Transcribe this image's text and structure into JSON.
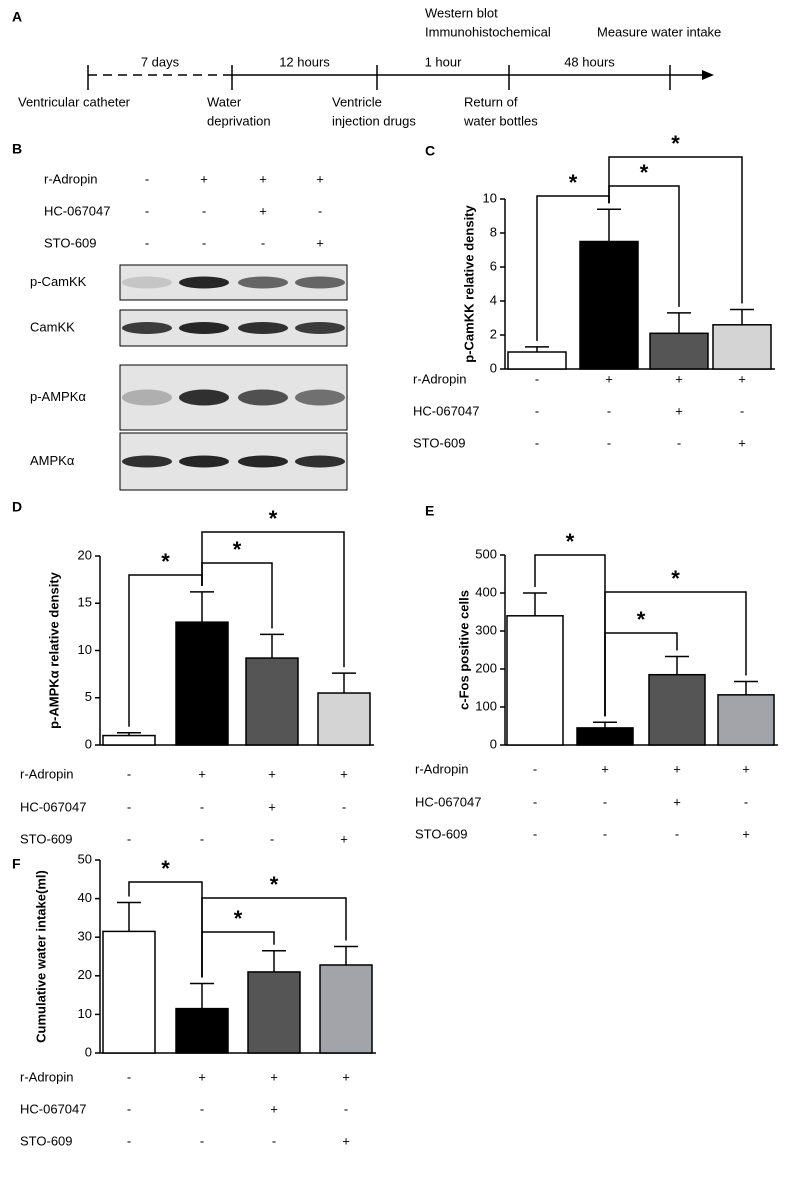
{
  "panel_labels": [
    "A",
    "B",
    "C",
    "D",
    "E",
    "F"
  ],
  "timeline": {
    "intervals": [
      "7 days",
      "12 hours",
      "1 hour",
      "48 hours"
    ],
    "events_below": [
      [
        "Ventricular catheter"
      ],
      [
        "Water",
        "deprivation"
      ],
      [
        "Ventricle",
        "injection drugs"
      ],
      [
        "Return of",
        "water bottles"
      ]
    ],
    "events_above": [
      "Western blot",
      "Immunohistochemical",
      "Measure water intake"
    ]
  },
  "blot": {
    "treatments": [
      {
        "name": "r-Adropin",
        "signs": [
          "-",
          "+",
          "+",
          "+"
        ]
      },
      {
        "name": "HC-067047",
        "signs": [
          "-",
          "-",
          "+",
          "-"
        ]
      },
      {
        "name": "STO-609",
        "signs": [
          "-",
          "-",
          "-",
          "+"
        ]
      }
    ],
    "proteins": [
      "p-CamKK",
      "CamKK",
      "p-AMPKα",
      "AMPKα"
    ]
  },
  "chart_data": [
    {
      "type": "bar",
      "ylabel": "p-CamKK relative density",
      "values": [
        1.0,
        7.5,
        2.1,
        2.6
      ],
      "errors": [
        0.3,
        1.9,
        1.2,
        0.9
      ],
      "colors": [
        "#ffffff",
        "#000000",
        "#555555",
        "#d4d4d4"
      ],
      "ylim": [
        0,
        10
      ],
      "yticks": [
        0,
        2,
        4,
        6,
        8,
        10
      ],
      "treatments": [
        {
          "name": "r-Adropin",
          "signs": [
            "-",
            "+",
            "+",
            "+"
          ]
        },
        {
          "name": "HC-067047",
          "signs": [
            "-",
            "-",
            "+",
            "-"
          ]
        },
        {
          "name": "STO-609",
          "signs": [
            "-",
            "-",
            "-",
            "+"
          ]
        }
      ],
      "significance": [
        {
          "label": "*",
          "between": [
            0,
            1
          ]
        },
        {
          "label": "*",
          "between": [
            1,
            2
          ]
        },
        {
          "label": "*",
          "between": [
            1,
            3
          ]
        }
      ]
    },
    {
      "type": "bar",
      "ylabel": "p-AMPKα relative density",
      "values": [
        1.0,
        13.0,
        9.2,
        5.5
      ],
      "errors": [
        0.3,
        3.2,
        2.5,
        2.1
      ],
      "colors": [
        "#ffffff",
        "#000000",
        "#555555",
        "#d4d4d4"
      ],
      "ylim": [
        0,
        20
      ],
      "yticks": [
        0,
        5,
        10,
        15,
        20
      ],
      "treatments": [
        {
          "name": "r-Adropin",
          "signs": [
            "-",
            "+",
            "+",
            "+"
          ]
        },
        {
          "name": "HC-067047",
          "signs": [
            "-",
            "-",
            "+",
            "-"
          ]
        },
        {
          "name": "STO-609",
          "signs": [
            "-",
            "-",
            "-",
            "+"
          ]
        }
      ],
      "significance": [
        {
          "label": "*",
          "between": [
            0,
            1
          ]
        },
        {
          "label": "*",
          "between": [
            1,
            2
          ]
        },
        {
          "label": "*",
          "between": [
            1,
            3
          ]
        }
      ]
    },
    {
      "type": "bar",
      "ylabel": "c-Fos positive cells",
      "values": [
        340,
        45,
        185,
        132
      ],
      "errors": [
        60,
        15,
        48,
        35
      ],
      "colors": [
        "#ffffff",
        "#000000",
        "#555555",
        "#a3a3aa"
      ],
      "ylim": [
        0,
        500
      ],
      "yticks": [
        0,
        100,
        200,
        300,
        400,
        500
      ],
      "treatments": [
        {
          "name": "r-Adropin",
          "signs": [
            "-",
            "+",
            "+",
            "+"
          ]
        },
        {
          "name": "HC-067047",
          "signs": [
            "-",
            "-",
            "+",
            "-"
          ]
        },
        {
          "name": "STO-609",
          "signs": [
            "-",
            "-",
            "-",
            "+"
          ]
        }
      ],
      "significance": [
        {
          "label": "*",
          "between": [
            0,
            1
          ]
        },
        {
          "label": "*",
          "between": [
            1,
            2
          ]
        },
        {
          "label": "*",
          "between": [
            1,
            3
          ]
        }
      ]
    },
    {
      "type": "bar",
      "ylabel": "Cumulative water intake(ml)",
      "values": [
        31.5,
        11.5,
        21,
        22.8
      ],
      "errors": [
        7.5,
        6.5,
        5.5,
        4.8
      ],
      "colors": [
        "#ffffff",
        "#000000",
        "#555555",
        "#a3a3aa"
      ],
      "ylim": [
        0,
        50
      ],
      "yticks": [
        0,
        10,
        20,
        30,
        40,
        50
      ],
      "treatments": [
        {
          "name": "r-Adropin",
          "signs": [
            "-",
            "+",
            "+",
            "+"
          ]
        },
        {
          "name": "HC-067047",
          "signs": [
            "-",
            "-",
            "+",
            "-"
          ]
        },
        {
          "name": "STO-609",
          "signs": [
            "-",
            "-",
            "-",
            "+"
          ]
        }
      ],
      "significance": [
        {
          "label": "*",
          "between": [
            0,
            1
          ]
        },
        {
          "label": "*",
          "between": [
            1,
            2
          ]
        },
        {
          "label": "*",
          "between": [
            1,
            3
          ]
        }
      ]
    }
  ]
}
